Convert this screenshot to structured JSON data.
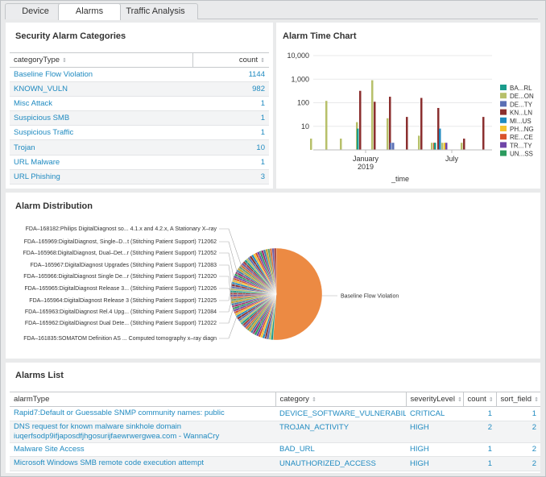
{
  "tabs": [
    {
      "label": "Device",
      "active": false
    },
    {
      "label": "Alarms",
      "active": true
    },
    {
      "label": "Traffic Analysis",
      "active": false
    }
  ],
  "categories_panel": {
    "title": "Security Alarm Categories",
    "columns": [
      "categoryType",
      "count"
    ],
    "rows": [
      {
        "type": "Baseline Flow Violation",
        "count": "1144"
      },
      {
        "type": "KNOWN_VULN",
        "count": "982"
      },
      {
        "type": "Misc Attack",
        "count": "1"
      },
      {
        "type": "Suspicious SMB",
        "count": "1"
      },
      {
        "type": "Suspicious Traffic",
        "count": "1"
      },
      {
        "type": "Trojan",
        "count": "10"
      },
      {
        "type": "URL Malware",
        "count": "1"
      },
      {
        "type": "URL Phishing",
        "count": "3"
      }
    ]
  },
  "time_chart": {
    "title": "Alarm Time Chart",
    "y_ticks": [
      "10,000",
      "1,000",
      "100",
      "10"
    ],
    "x_ticks": [
      {
        "label": "January",
        "sub": "2019"
      },
      {
        "label": "July",
        "sub": ""
      }
    ],
    "x_title": "_time",
    "legend": [
      {
        "label": "BA...RL",
        "color": "#1a9c8c"
      },
      {
        "label": "DE...ON",
        "color": "#b7c06a"
      },
      {
        "label": "DE...TY",
        "color": "#5a6fb5"
      },
      {
        "label": "KN...LN",
        "color": "#8b2f2f"
      },
      {
        "label": "MI...US",
        "color": "#1f8ac0"
      },
      {
        "label": "PH...NG",
        "color": "#f4c430"
      },
      {
        "label": "RE...CE",
        "color": "#d9532b"
      },
      {
        "label": "TR...TY",
        "color": "#6f45a8"
      },
      {
        "label": "UN...SS",
        "color": "#2c9b5e"
      }
    ]
  },
  "distribution": {
    "title": "Alarm Distribution",
    "labels": [
      "FDA–168182:Philips DigitalDiagnost so... 4.1.x and 4.2.x, A Stationary X–ray",
      "FDA–165969:DigitalDiagnost, Single–D...t (Stitching Patient Support) 712062",
      "FDA–165968:DigitalDiagnost, Dual–Det...r (Stitching Patient Support) 712052",
      "FDA–165967:DigitalDiagnost Upgrades (Stitching Patient Support) 712083",
      "FDA–165966:DigitalDiagnost Single De...r (Stitching Patient Support) 712020",
      "FDA–165965:DigitalDiagnost Release 3... (Stitching Patient Support) 712026",
      "FDA–165964:DigitalDiagnost Release 3 (Stitching Patient Support) 712025",
      "FDA–165963:DigitalDiagnost Rel.4 Upg... (Stitching Patient Support) 712084",
      "FDA–165962:DigitalDiagnost Dual Dete... (Stitching Patient Support) 712022",
      "FDA–161835:SOMATOM Definition AS ... Computed tomography x–ray diagn"
    ],
    "main_label": "Baseline Flow Violation",
    "main_color": "#ec8a43"
  },
  "alarms_list": {
    "title": "Alarms List",
    "columns": [
      "alarmType",
      "category",
      "severityLevel",
      "count",
      "sort_field"
    ],
    "rows": [
      {
        "alarmType": "Rapid7:Default or Guessable SNMP community names: public",
        "alarmType2": "",
        "category": "DEVICE_SOFTWARE_VULNERABILITY",
        "severity": "CRITICAL",
        "count": "1",
        "sort": "1"
      },
      {
        "alarmType": "DNS request for known malware sinkhole domain",
        "alarmType2": "iuqerfsodp9ifjaposdfjhgosurijfaewrwergwea.com - WannaCry",
        "category": "TROJAN_ACTIVITY",
        "severity": "HIGH",
        "count": "2",
        "sort": "2"
      },
      {
        "alarmType": "Malware Site Access",
        "alarmType2": "",
        "category": "BAD_URL",
        "severity": "HIGH",
        "count": "1",
        "sort": "2"
      },
      {
        "alarmType": "Microsoft Windows SMB remote code execution attempt",
        "alarmType2": "",
        "category": "UNAUTHORIZED_ACCESS",
        "severity": "HIGH",
        "count": "1",
        "sort": "2"
      }
    ]
  }
}
